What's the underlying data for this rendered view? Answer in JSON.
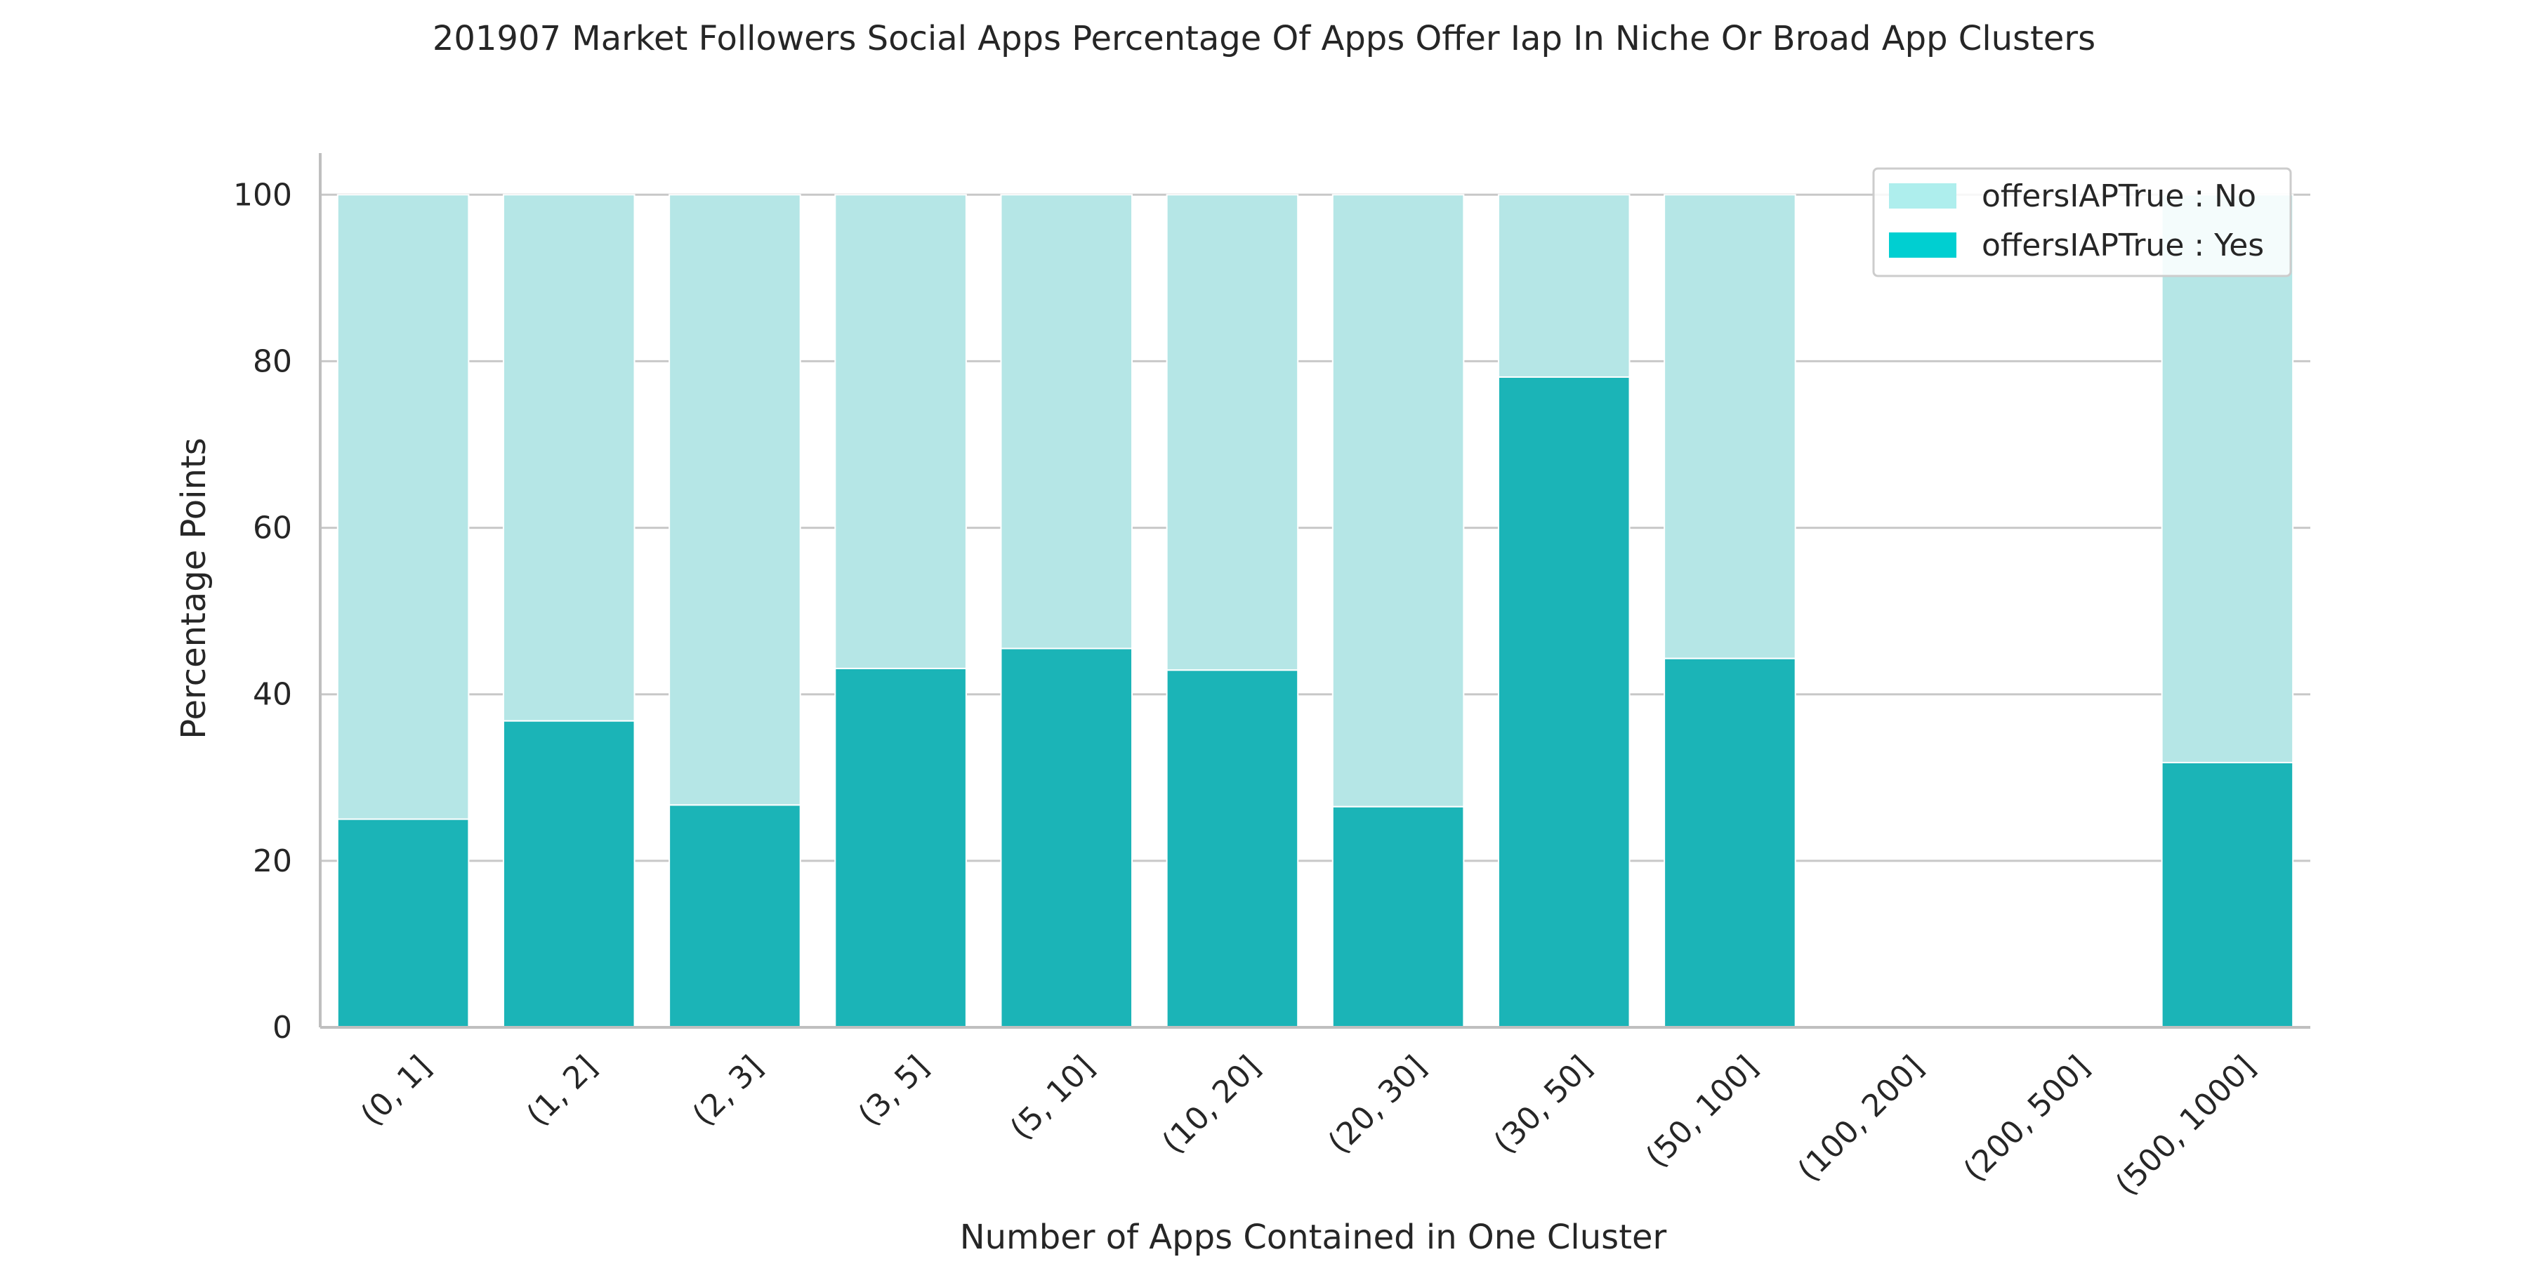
{
  "chart_data": {
    "type": "bar",
    "stacked": true,
    "title": "201907 Market Followers Social Apps Percentage Of Apps Offer Iap In Niche Or Broad App Clusters",
    "xlabel": "Number of Apps Contained in One Cluster",
    "ylabel": "Percentage Points",
    "ylim": [
      0,
      105
    ],
    "yticks": [
      0,
      20,
      40,
      60,
      80,
      100
    ],
    "grid": true,
    "legend_position": "top-right",
    "categories": [
      "(0, 1]",
      "(1, 2]",
      "(2, 3]",
      "(3, 5]",
      "(5, 10]",
      "(10, 20]",
      "(20, 30]",
      "(30, 50]",
      "(50, 100]",
      "(100, 200]",
      "(200, 500]",
      "(500, 1000]"
    ],
    "series": [
      {
        "name": "offersIAPTrue : Yes",
        "color": "#1bb4b7",
        "legend_color": "#00cfd1",
        "values": [
          25,
          36.8,
          26.7,
          43.1,
          45.5,
          42.9,
          26.5,
          78.1,
          44.3,
          null,
          null,
          31.8
        ]
      },
      {
        "name": "offersIAPTrue : No",
        "color": "#b5e6e6",
        "legend_color": "#aeeeed",
        "values": [
          75,
          63.2,
          73.3,
          56.9,
          54.5,
          57.1,
          73.5,
          21.9,
          55.7,
          null,
          null,
          68.2
        ]
      }
    ]
  }
}
